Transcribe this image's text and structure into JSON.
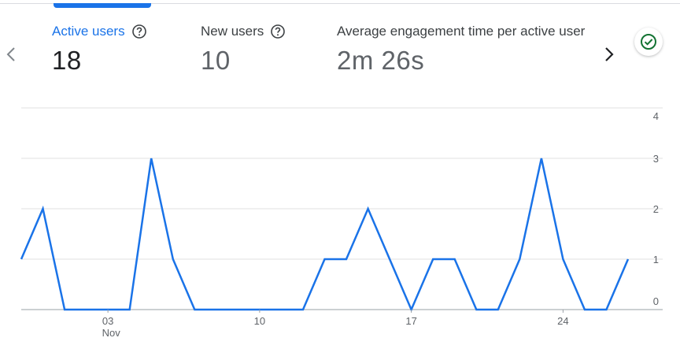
{
  "metrics": [
    {
      "label": "Active users",
      "value": "18",
      "active": true
    },
    {
      "label": "New users",
      "value": "10",
      "active": false
    },
    {
      "label": "Average engagement time per active user",
      "value": "2m 26s",
      "active": false
    }
  ],
  "icons": {
    "help": "help-circle-icon",
    "prev": "chevron-left-icon",
    "next": "chevron-right-icon",
    "status": "check-circle-icon"
  },
  "colors": {
    "accent": "#1a73e8",
    "line": "#1a73e8",
    "status": "#137333"
  },
  "chart_data": {
    "type": "line",
    "x": [
      "Oct 30",
      "Oct 31",
      "Nov 01",
      "Nov 02",
      "Nov 03",
      "Nov 04",
      "Nov 05",
      "Nov 06",
      "Nov 07",
      "Nov 08",
      "Nov 09",
      "Nov 10",
      "Nov 11",
      "Nov 12",
      "Nov 13",
      "Nov 14",
      "Nov 15",
      "Nov 16",
      "Nov 17",
      "Nov 18",
      "Nov 19",
      "Nov 20",
      "Nov 21",
      "Nov 22",
      "Nov 23",
      "Nov 24",
      "Nov 25",
      "Nov 26",
      "Nov 27"
    ],
    "series": [
      {
        "values": [
          1,
          2,
          0,
          0,
          0,
          0,
          3,
          1,
          0,
          0,
          0,
          0,
          0,
          0,
          1,
          1,
          2,
          1,
          0,
          1,
          1,
          0,
          0,
          1,
          3,
          1,
          0,
          0,
          1
        ]
      }
    ],
    "x_tick_labels": [
      {
        "date": "Nov 03",
        "label": "03",
        "sublabel": "Nov"
      },
      {
        "date": "Nov 10",
        "label": "10",
        "sublabel": ""
      },
      {
        "date": "Nov 17",
        "label": "17",
        "sublabel": ""
      },
      {
        "date": "Nov 24",
        "label": "24",
        "sublabel": ""
      }
    ],
    "y_ticks": [
      0,
      1,
      2,
      3,
      4
    ],
    "ylim": [
      0,
      4
    ],
    "y_axis_side": "right",
    "grid": true
  }
}
